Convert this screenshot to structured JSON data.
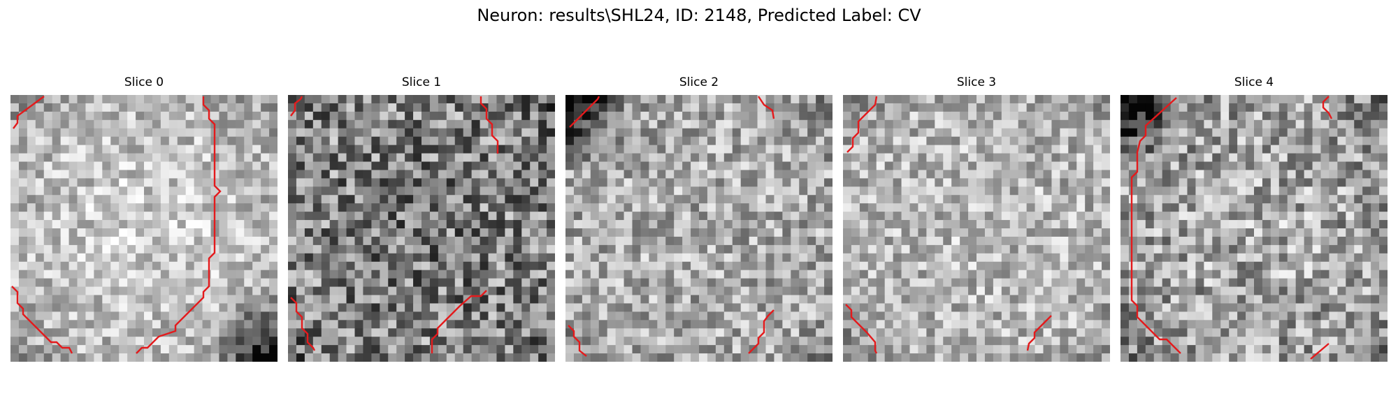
{
  "figure": {
    "title": "Neuron: results\\SHL24, ID: 2148, Predicted Label: CV"
  },
  "style": {
    "contour_color": "#e41a1c",
    "grayscale": true
  },
  "panels": [
    {
      "title": "Slice 0",
      "pattern": {
        "seed": 11,
        "mean": 0.72,
        "spread": 0.22,
        "center": 0.1,
        "dark_corner": "bottom-right"
      }
    },
    {
      "title": "Slice 1",
      "pattern": {
        "seed": 23,
        "mean": 0.52,
        "spread": 0.34,
        "center": -0.06,
        "dark_corner": "none"
      }
    },
    {
      "title": "Slice 2",
      "pattern": {
        "seed": 37,
        "mean": 0.66,
        "spread": 0.26,
        "center": 0.02,
        "dark_corner": "top-left"
      }
    },
    {
      "title": "Slice 3",
      "pattern": {
        "seed": 53,
        "mean": 0.7,
        "spread": 0.24,
        "center": 0.04,
        "dark_corner": "none"
      }
    },
    {
      "title": "Slice 4",
      "pattern": {
        "seed": 71,
        "mean": 0.62,
        "spread": 0.3,
        "center": 0.06,
        "dark_corner": "top-left"
      }
    }
  ]
}
